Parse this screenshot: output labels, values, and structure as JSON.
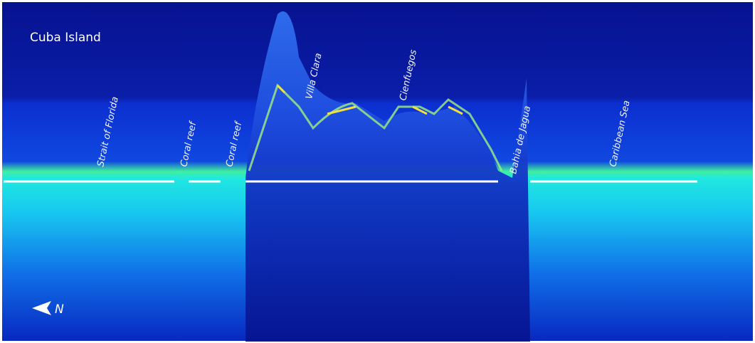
{
  "title": "Cuba Island",
  "labels": [
    "Strait of Florida",
    "Coral reef",
    "Coral reef",
    "Villa Clara",
    "Cienfuegos",
    "Bahia de Jagua",
    "Caribbean Sea"
  ],
  "compass": "N"
}
